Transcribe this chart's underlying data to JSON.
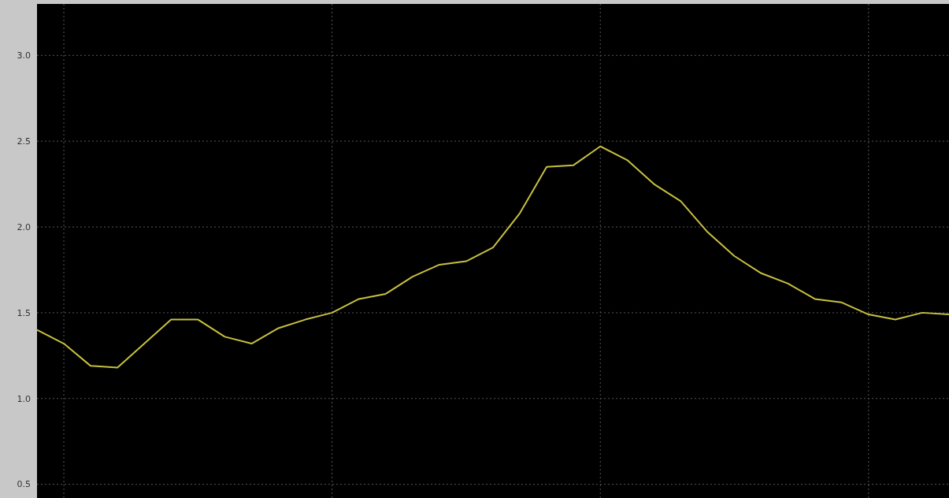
{
  "chart_data": {
    "type": "line",
    "categories": [
      null,
      null,
      null,
      null,
      null,
      null,
      null,
      null,
      null,
      null,
      null,
      null,
      null,
      null,
      null,
      null,
      null,
      null,
      null,
      null,
      null,
      null,
      null,
      null,
      null,
      null,
      null,
      null,
      null,
      null,
      null,
      null,
      null,
      null,
      null
    ],
    "series": [
      {
        "color": "#c8c040",
        "values": [
          1.4,
          1.32,
          1.19,
          1.18,
          1.32,
          1.46,
          1.46,
          1.36,
          1.32,
          1.41,
          1.46,
          1.5,
          1.58,
          1.61,
          1.71,
          1.78,
          1.8,
          1.88,
          2.08,
          2.35,
          2.36,
          2.47,
          2.39,
          2.25,
          2.15,
          1.97,
          1.83,
          1.73,
          1.67,
          1.58,
          1.56,
          1.49,
          1.46,
          1.5,
          1.49
        ]
      }
    ],
    "ylim": [
      0.42,
      3.3
    ],
    "yticks": [
      {
        "value": 0.5,
        "label": "0.5"
      },
      {
        "value": 1,
        "label": "1.0"
      },
      {
        "value": 1.5,
        "label": "1.5"
      },
      {
        "value": 2,
        "label": "2.0"
      },
      {
        "value": 2.5,
        "label": "2.5"
      },
      {
        "value": 3,
        "label": "3.0"
      }
    ],
    "tick_labels": "y",
    "grid": true,
    "marker": "none",
    "line_style": "solid",
    "legend": false
  }
}
